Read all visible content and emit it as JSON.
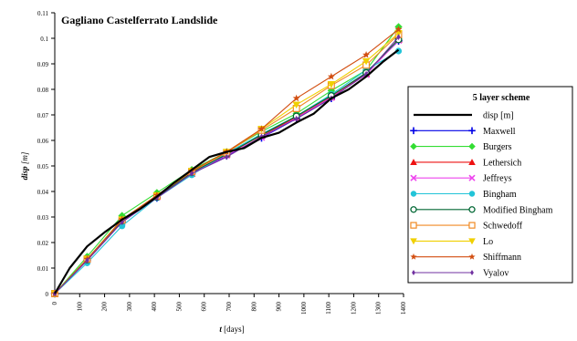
{
  "chart_data": {
    "type": "line",
    "title": "Gagliano Castelferrato Landslide",
    "ylabel": "disp",
    "ylabel_unit": "[m]",
    "xlabel": "t",
    "xlabel_unit": "[days]",
    "xlim": [
      0,
      1400
    ],
    "ylim": [
      0,
      0.11
    ],
    "x_ticks": [
      0,
      100,
      200,
      300,
      400,
      500,
      600,
      700,
      800,
      900,
      1000,
      1100,
      1200,
      1300,
      1400
    ],
    "y_ticks": [
      0,
      0.01,
      0.02,
      0.03,
      0.04,
      0.05,
      0.06,
      0.07,
      0.08,
      0.09,
      0.1,
      0.11
    ],
    "y_tick_labels": [
      "0",
      "0.01",
      "0.02",
      "0.03",
      "0.04",
      "0.05",
      "0.06",
      "0.07",
      "0.08",
      "0.09",
      "0.1",
      "0.11"
    ],
    "grid": false,
    "legend": {
      "title": "5 layer scheme",
      "position": "right"
    },
    "marker_x": [
      0,
      130,
      270,
      410,
      550,
      690,
      830,
      970,
      1110,
      1250,
      1380
    ],
    "series": [
      {
        "name": "disp [m]",
        "color": "#000000",
        "marker": "none",
        "width": 2.2,
        "x": [
          0,
          60,
          130,
          200,
          270,
          340,
          410,
          480,
          550,
          620,
          690,
          760,
          830,
          900,
          970,
          1040,
          1110,
          1180,
          1250,
          1320,
          1380
        ],
        "y": [
          0,
          0.01,
          0.0185,
          0.024,
          0.029,
          0.033,
          0.038,
          0.0435,
          0.0485,
          0.0535,
          0.0555,
          0.057,
          0.061,
          0.063,
          0.067,
          0.0705,
          0.0765,
          0.08,
          0.085,
          0.091,
          0.0955
        ]
      },
      {
        "name": "Maxwell",
        "color": "#0000e6",
        "marker": "plus",
        "y": [
          0,
          0.013,
          0.028,
          0.0375,
          0.047,
          0.054,
          0.061,
          0.0685,
          0.0765,
          0.0865,
          0.099
        ]
      },
      {
        "name": "Burgers",
        "color": "#33dd33",
        "marker": "diamond",
        "y": [
          0,
          0.0145,
          0.0305,
          0.0395,
          0.0485,
          0.0555,
          0.0635,
          0.0705,
          0.0795,
          0.0875,
          0.1045
        ]
      },
      {
        "name": "Lethersich",
        "color": "#ee1111",
        "marker": "triangle",
        "y": [
          0,
          0.0135,
          0.029,
          0.038,
          0.047,
          0.0545,
          0.062,
          0.069,
          0.077,
          0.086,
          0.0995
        ]
      },
      {
        "name": "Jeffreys",
        "color": "#ee44ee",
        "marker": "x",
        "y": [
          0,
          0.013,
          0.028,
          0.0378,
          0.0472,
          0.0542,
          0.0612,
          0.0688,
          0.0768,
          0.0858,
          0.0992
        ]
      },
      {
        "name": "Bingham",
        "color": "#22c4d8",
        "marker": "circle",
        "y": [
          0,
          0.012,
          0.0265,
          0.0375,
          0.0465,
          0.055,
          0.0625,
          0.0695,
          0.078,
          0.0875,
          0.095
        ]
      },
      {
        "name": "Modified Bingham",
        "color": "#006633",
        "marker": "circle-open",
        "y": [
          0,
          0.0132,
          0.0285,
          0.0378,
          0.0475,
          0.0545,
          0.0622,
          0.0695,
          0.0775,
          0.0865,
          0.0995
        ]
      },
      {
        "name": "Schwedoff",
        "color": "#f08a24",
        "marker": "square-open",
        "y": [
          0,
          0.0135,
          0.0288,
          0.0382,
          0.0478,
          0.0552,
          0.064,
          0.0725,
          0.0815,
          0.0895,
          0.1015
        ]
      },
      {
        "name": "Lo",
        "color": "#f0d000",
        "marker": "triangle-down",
        "y": [
          0,
          0.0135,
          0.029,
          0.0385,
          0.048,
          0.0555,
          0.0645,
          0.074,
          0.082,
          0.091,
          0.102
        ]
      },
      {
        "name": "Shiffmann",
        "color": "#d24e10",
        "marker": "star",
        "y": [
          0,
          0.0135,
          0.029,
          0.0385,
          0.048,
          0.0555,
          0.0645,
          0.0765,
          0.085,
          0.0935,
          0.1035
        ]
      },
      {
        "name": "Vyalov",
        "color": "#7030a0",
        "marker": "diamond-small",
        "y": [
          0,
          0.013,
          0.028,
          0.0375,
          0.047,
          0.0535,
          0.0615,
          0.0685,
          0.0765,
          0.086,
          0.1005
        ]
      }
    ]
  }
}
